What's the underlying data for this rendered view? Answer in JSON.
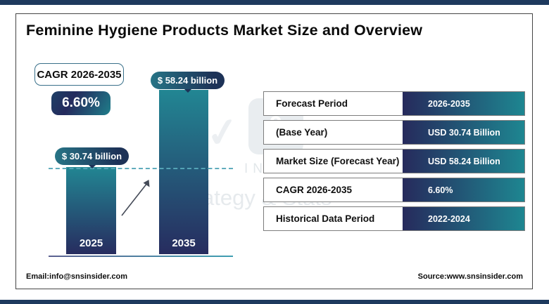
{
  "header": {
    "title": "Feminine Hygiene Products Market Size and Overview"
  },
  "cagr_box": {
    "label": "CAGR 2026-2035",
    "value": "6.60%"
  },
  "chart_data": {
    "type": "bar",
    "title": "Feminine Hygiene Products Market Size",
    "categories": [
      "2025",
      "2035"
    ],
    "values": [
      30.74,
      58.24
    ],
    "value_labels": [
      "$ 30.74 billion",
      "$ 58.24 billion"
    ],
    "unit": "USD billion",
    "xlabel": "",
    "ylabel": "",
    "ylim": [
      0,
      65
    ],
    "grid": "off",
    "legend": "none",
    "reference_line": {
      "value": 30.74,
      "style": "dashed"
    },
    "annotations": [
      "growth-arrow between 2025 and 2035 bars"
    ]
  },
  "table": {
    "rows": [
      {
        "label": "Forecast Period",
        "value": "2026-2035"
      },
      {
        "label": "(Base Year)",
        "value": "USD 30.74 Billion"
      },
      {
        "label": "Market Size (Forecast Year)",
        "value": "USD 58.24 Billion"
      },
      {
        "label": "CAGR 2026-2035",
        "value": "6.60%"
      },
      {
        "label": "Historical Data Period",
        "value": "2022-2024"
      }
    ]
  },
  "watermark": {
    "symbol": "&",
    "line1": "INSIDER",
    "line2": "ategy & Stats"
  },
  "footer": {
    "email": "Email:info@snsinsider.com",
    "source": "Source:www.snsinsider.com"
  },
  "colors": {
    "frame_bar": "#1e3a5e",
    "bar_top": "#228693",
    "bar_bottom": "#272c5f",
    "table_value_left": "#262a5c",
    "table_value_right": "#1e8691",
    "dashed_line": "#57a8b8",
    "axis_line_left": "#5c6190",
    "axis_line_right": "#3f9fb2"
  }
}
